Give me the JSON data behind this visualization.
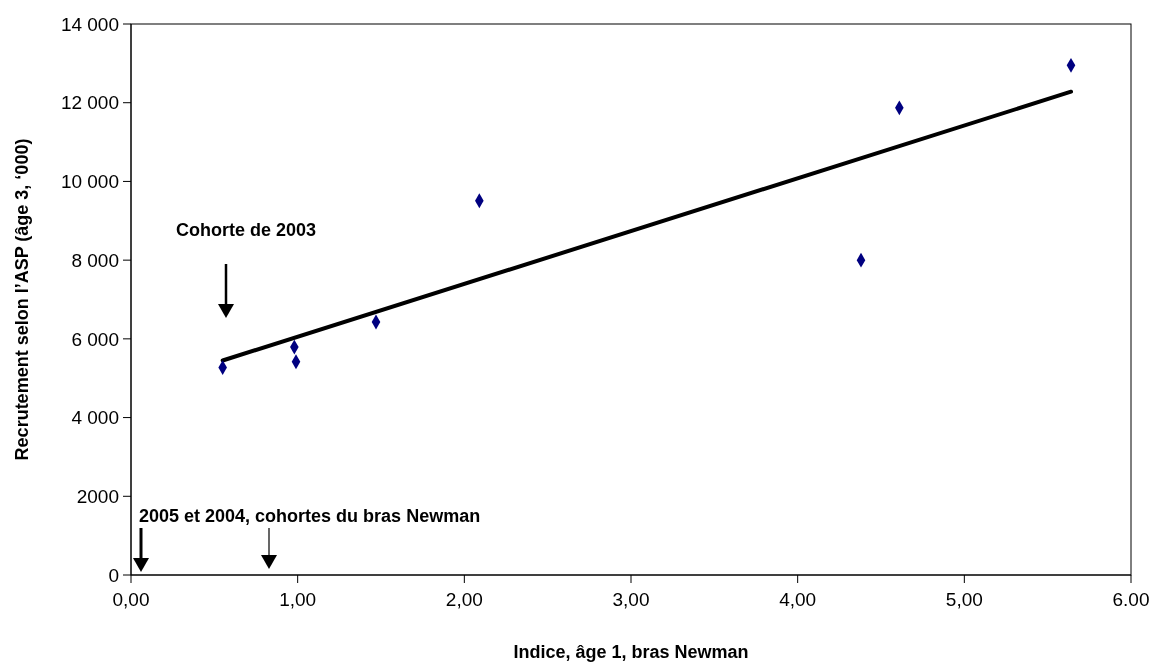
{
  "chart_data": {
    "type": "scatter",
    "xlabel": "Indice, âge 1, bras Newman",
    "ylabel": "Recrutement selon l’ASP (âge 3, ‘000)",
    "series": [
      {
        "color": "#000080",
        "marker": "diamond",
        "x": [
          0.55,
          0.98,
          0.99,
          1.47,
          2.09,
          4.38,
          4.61,
          5.64
        ],
        "values": [
          5270,
          5790,
          5420,
          6430,
          9510,
          8000,
          11870,
          12950
        ]
      },
      {
        "type": "line",
        "color": "#000000",
        "x": [
          0.55,
          5.64
        ],
        "values": [
          5450,
          12280
        ]
      }
    ],
    "line_style": "solid",
    "grid": false,
    "legend": false,
    "xlim": [
      0,
      6
    ],
    "xticks": [
      {
        "value": 0,
        "label": "0,00"
      },
      {
        "value": 1,
        "label": "1,00"
      },
      {
        "value": 2,
        "label": "2,00"
      },
      {
        "value": 3,
        "label": "3,00"
      },
      {
        "value": 4,
        "label": "4,00"
      },
      {
        "value": 5,
        "label": "5,00"
      },
      {
        "value": 6,
        "label": "6.00"
      }
    ],
    "ylim": [
      0,
      14000
    ],
    "yticks": [
      0,
      2000,
      {
        "value": 4000,
        "label": "4 000"
      },
      {
        "value": 6000,
        "label": "6 000"
      },
      {
        "value": 8000,
        "label": "8 000"
      },
      {
        "value": 10000,
        "label": "10 000"
      },
      {
        "value": 12000,
        "label": "12 000"
      },
      {
        "value": 14000,
        "label": "14 000"
      }
    ],
    "annotations": [
      "Cohorte de 2003",
      "2005 et 2004, cohortes du bras Newman"
    ]
  }
}
